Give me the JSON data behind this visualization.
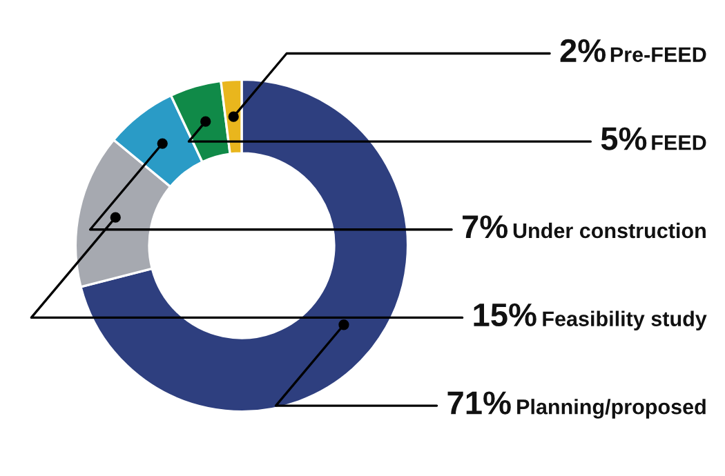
{
  "chart_data": {
    "type": "donut",
    "categories": [
      "Planning/proposed",
      "Feasibility study",
      "Under construction",
      "FEED",
      "Pre-FEED"
    ],
    "values": [
      71,
      15,
      7,
      5,
      2
    ],
    "value_labels": [
      "71%",
      "15%",
      "7%",
      "5%",
      "2%"
    ],
    "colors": [
      "#2e3f7f",
      "#a6a9b0",
      "#2a9bc6",
      "#108a48",
      "#e9b61d"
    ],
    "legend": false
  }
}
